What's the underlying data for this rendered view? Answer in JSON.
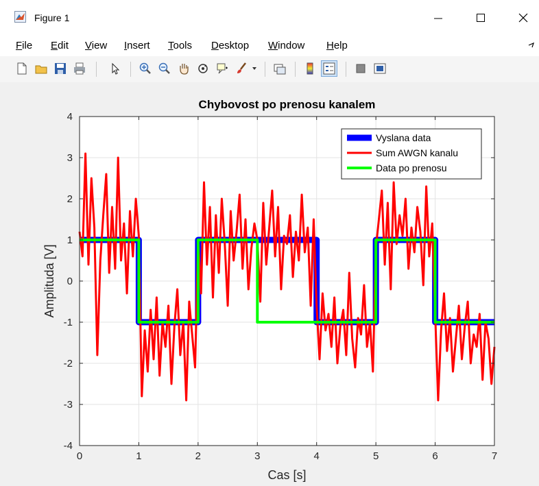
{
  "window": {
    "title": "Figure 1"
  },
  "menu": [
    "File",
    "Edit",
    "View",
    "Insert",
    "Tools",
    "Desktop",
    "Window",
    "Help"
  ],
  "toolbar_icons": [
    "new-figure-icon",
    "open-file-icon",
    "save-icon",
    "print-icon",
    "pointer-icon",
    "zoom-in-icon",
    "zoom-out-icon",
    "pan-icon",
    "rotate-3d-icon",
    "data-cursor-icon",
    "brush-icon",
    "link-plot-icon",
    "colorbar-icon",
    "legend-icon",
    "hide-plot-tools-icon",
    "show-plot-tools-icon"
  ],
  "chart_data": {
    "type": "line",
    "title": "Chybovost po prenosu kanalem",
    "xlabel": "Cas [s]",
    "ylabel": "Amplituda [V]",
    "xlim": [
      0,
      7
    ],
    "ylim": [
      -4,
      4
    ],
    "xticks": [
      0,
      1,
      2,
      3,
      4,
      5,
      6,
      7
    ],
    "yticks": [
      -4,
      -3,
      -2,
      -1,
      0,
      1,
      2,
      3,
      4
    ],
    "grid": true,
    "legend_position": "top-right",
    "series": [
      {
        "name": "Vyslana data",
        "color": "#0000ff",
        "x": [
          0,
          1,
          1,
          2,
          2,
          4,
          4,
          5,
          5,
          6,
          6,
          7
        ],
        "y": [
          1,
          1,
          -1,
          -1,
          1,
          1,
          -1,
          -1,
          1,
          1,
          -1,
          -1
        ]
      },
      {
        "name": "Sum AWGN kanalu",
        "color": "#ff0000",
        "x": [
          0,
          0.05,
          0.1,
          0.15,
          0.2,
          0.25,
          0.3,
          0.35,
          0.4,
          0.45,
          0.5,
          0.55,
          0.6,
          0.65,
          0.7,
          0.75,
          0.8,
          0.85,
          0.9,
          0.95,
          1.0,
          1.05,
          1.1,
          1.15,
          1.2,
          1.25,
          1.3,
          1.35,
          1.4,
          1.45,
          1.5,
          1.55,
          1.6,
          1.65,
          1.7,
          1.75,
          1.8,
          1.85,
          1.9,
          1.95,
          2.0,
          2.05,
          2.1,
          2.15,
          2.2,
          2.25,
          2.3,
          2.35,
          2.4,
          2.45,
          2.5,
          2.55,
          2.6,
          2.65,
          2.7,
          2.75,
          2.8,
          2.85,
          2.9,
          2.95,
          3.0,
          3.05,
          3.1,
          3.15,
          3.2,
          3.25,
          3.3,
          3.35,
          3.4,
          3.45,
          3.5,
          3.55,
          3.6,
          3.65,
          3.7,
          3.75,
          3.8,
          3.85,
          3.9,
          3.95,
          4.0,
          4.05,
          4.1,
          4.15,
          4.2,
          4.25,
          4.3,
          4.35,
          4.4,
          4.45,
          4.5,
          4.55,
          4.6,
          4.65,
          4.7,
          4.75,
          4.8,
          4.85,
          4.9,
          4.95,
          5.0,
          5.05,
          5.1,
          5.15,
          5.2,
          5.25,
          5.3,
          5.35,
          5.4,
          5.45,
          5.5,
          5.55,
          5.6,
          5.65,
          5.7,
          5.75,
          5.8,
          5.85,
          5.9,
          5.95,
          6.0,
          6.05,
          6.1,
          6.15,
          6.2,
          6.25,
          6.3,
          6.35,
          6.4,
          6.45,
          6.5,
          6.55,
          6.6,
          6.65,
          6.7,
          6.75,
          6.8,
          6.85,
          6.9,
          6.95,
          7.0
        ],
        "y": [
          1.2,
          0.6,
          3.1,
          0.4,
          2.5,
          1.3,
          -1.8,
          0.5,
          1.6,
          2.6,
          0.2,
          1.8,
          0.3,
          3.0,
          0.5,
          1.4,
          -0.3,
          1.7,
          0.6,
          2.0,
          1.1,
          -2.8,
          -1.2,
          -2.2,
          -0.7,
          -1.9,
          -0.4,
          -2.3,
          -1.0,
          -1.6,
          -0.6,
          -2.5,
          -1.1,
          -0.2,
          -1.8,
          -1.0,
          -2.9,
          -0.5,
          -1.3,
          -2.1,
          1.0,
          -0.3,
          2.4,
          0.4,
          1.8,
          -0.4,
          1.6,
          0.2,
          2.0,
          0.9,
          -0.6,
          1.7,
          0.5,
          1.2,
          2.1,
          0.3,
          1.5,
          -0.2,
          0.8,
          1.4,
          1.0,
          -0.5,
          1.9,
          0.4,
          1.3,
          2.2,
          0.6,
          1.8,
          -0.2,
          1.1,
          0.9,
          1.6,
          0.1,
          1.2,
          0.5,
          2.1,
          0.7,
          1.3,
          -0.6,
          1.5,
          -0.6,
          -1.9,
          -0.3,
          -1.2,
          -0.8,
          -1.6,
          -0.4,
          -2.0,
          -1.1,
          -0.7,
          -1.8,
          0.2,
          -1.4,
          -2.1,
          -0.9,
          -1.3,
          -0.1,
          -1.6,
          -1.0,
          -2.2,
          0.8,
          1.5,
          2.2,
          0.4,
          1.9,
          -0.2,
          2.4,
          0.9,
          1.6,
          1.1,
          2.0,
          0.3,
          1.3,
          0.7,
          1.8,
          1.2,
          -0.1,
          2.3,
          0.6,
          1.4,
          -0.8,
          -2.9,
          -1.2,
          -0.3,
          -1.7,
          -0.9,
          -2.2,
          -1.4,
          -0.6,
          -1.9,
          -1.1,
          -0.5,
          -2.0,
          -1.3,
          -1.6,
          -0.8,
          -2.4,
          -1.0,
          -1.4,
          -2.5,
          -1.6
        ]
      },
      {
        "name": "Data po prenosu",
        "color": "#00ff00",
        "x": [
          0,
          1,
          1,
          2,
          2,
          3,
          3,
          5,
          5,
          6,
          6,
          7
        ],
        "y": [
          1,
          1,
          -1,
          -1,
          1,
          1,
          -1,
          -1,
          1,
          1,
          -1,
          -1
        ]
      }
    ]
  }
}
